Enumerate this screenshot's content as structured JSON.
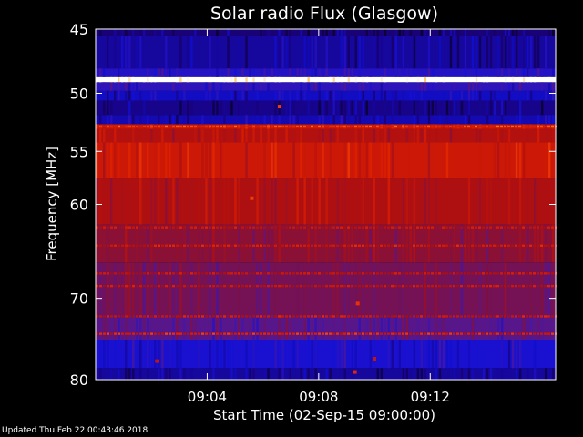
{
  "chart_data": {
    "type": "heatmap",
    "title": "Solar radio Flux (Glasgow)",
    "xlabel": "Start Time (02-Sep-15 09:00:00)",
    "ylabel": "Frequency [MHz]",
    "x_range_minutes": [
      0,
      16.5
    ],
    "x_ticks": [
      {
        "minute": 4,
        "label": "09:04"
      },
      {
        "minute": 8,
        "label": "09:08"
      },
      {
        "minute": 12,
        "label": "09:12"
      }
    ],
    "y_scale": "log",
    "y_range_mhz": [
      45,
      80
    ],
    "y_ticks": [
      {
        "mhz": 45,
        "label": "45"
      },
      {
        "mhz": 50,
        "label": "50"
      },
      {
        "mhz": 55,
        "label": "55"
      },
      {
        "mhz": 60,
        "label": "60"
      },
      {
        "mhz": 70,
        "label": "70"
      },
      {
        "mhz": 80,
        "label": "80"
      }
    ],
    "grid": false,
    "colormap": [
      "#000000",
      "#1a006e",
      "#1010d8",
      "#4a18a0",
      "#801040",
      "#b01010",
      "#e02000",
      "#ff5a10",
      "#ffb830",
      "#ffffff"
    ],
    "freq_bands": [
      {
        "from": 45.0,
        "to": 45.5,
        "level": 0.12
      },
      {
        "from": 45.5,
        "to": 48.0,
        "level": 0.16
      },
      {
        "from": 48.0,
        "to": 48.7,
        "level": 0.26
      },
      {
        "from": 48.7,
        "to": 49.1,
        "level": 1.0
      },
      {
        "from": 49.1,
        "to": 49.8,
        "level": 0.28
      },
      {
        "from": 49.8,
        "to": 50.6,
        "level": 0.2
      },
      {
        "from": 50.6,
        "to": 51.8,
        "level": 0.14
      },
      {
        "from": 51.8,
        "to": 52.6,
        "level": 0.18
      },
      {
        "from": 52.6,
        "to": 53.0,
        "level": 0.62
      },
      {
        "from": 53.0,
        "to": 54.2,
        "level": 0.56
      },
      {
        "from": 54.2,
        "to": 57.5,
        "level": 0.62
      },
      {
        "from": 57.5,
        "to": 62.0,
        "level": 0.55
      },
      {
        "from": 62.0,
        "to": 66.0,
        "level": 0.47
      },
      {
        "from": 66.0,
        "to": 72.0,
        "level": 0.42
      },
      {
        "from": 72.0,
        "to": 75.0,
        "level": 0.36
      },
      {
        "from": 75.0,
        "to": 78.5,
        "level": 0.24
      },
      {
        "from": 78.5,
        "to": 80.0,
        "level": 0.16
      }
    ],
    "freq_lines": [
      {
        "mhz": 52.8,
        "level": 0.72
      },
      {
        "mhz": 62.3,
        "level": 0.58
      },
      {
        "mhz": 64.2,
        "level": 0.6
      },
      {
        "mhz": 67.2,
        "level": 0.58
      },
      {
        "mhz": 68.6,
        "level": 0.58
      },
      {
        "mhz": 72.1,
        "level": 0.6
      },
      {
        "mhz": 74.2,
        "level": 0.64
      }
    ],
    "bursts": [
      {
        "minute": 6.6,
        "mhz": 51.1,
        "level": 0.72
      },
      {
        "minute": 5.6,
        "mhz": 59.4,
        "level": 0.72
      },
      {
        "minute": 9.4,
        "mhz": 70.6,
        "level": 0.7
      },
      {
        "minute": 9.3,
        "mhz": 79.0,
        "level": 0.68
      },
      {
        "minute": 2.2,
        "mhz": 77.6,
        "level": 0.6
      },
      {
        "minute": 10.0,
        "mhz": 77.3,
        "level": 0.6
      }
    ]
  },
  "footer_text": "Updated Thu Feb 22 00:43:46 2018"
}
